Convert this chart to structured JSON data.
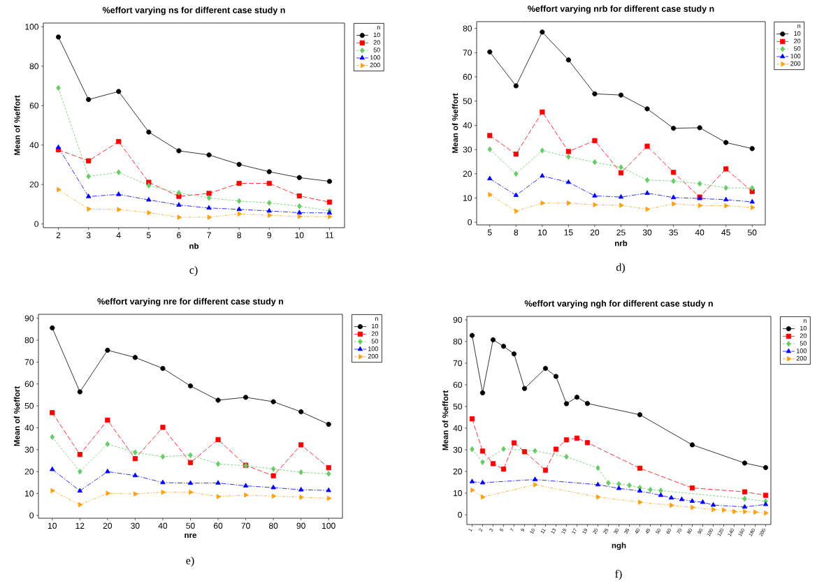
{
  "chart_data": [
    {
      "type": "line",
      "title": "%effort  varying ns for different case study n",
      "xlabel": "nb",
      "ylabel": "Mean of %effort",
      "legend_title": "n",
      "legend": "right",
      "annotations": [
        "c)"
      ],
      "categories": [
        "2",
        "3",
        "4",
        "5",
        "6",
        "7",
        "8",
        "9",
        "10",
        "11"
      ],
      "ylim": [
        -1.9,
        101.9
      ],
      "yticks": [
        0,
        20,
        40,
        60,
        80,
        100
      ],
      "series": [
        {
          "name": "10",
          "color": "#000000",
          "marker": "circle",
          "line_style": "solid",
          "values": [
            94.8,
            63.1,
            67.2,
            46.6,
            37.1,
            35.0,
            30.2,
            26.5,
            23.5,
            21.6
          ]
        },
        {
          "name": "20",
          "color": "#ff0000",
          "marker": "square",
          "line_style": "dashed",
          "values": [
            37.6,
            32.0,
            41.8,
            21.1,
            14.0,
            15.5,
            20.6,
            20.6,
            14.2,
            11.1
          ]
        },
        {
          "name": "50",
          "color": "#66cc66",
          "marker": "diamond",
          "line_style": "dashed",
          "values": [
            69.0,
            24.1,
            26.2,
            19.5,
            15.8,
            13.2,
            11.6,
            10.7,
            9.0,
            6.7
          ]
        },
        {
          "name": "100",
          "color": "#0000ff",
          "marker": "triangle",
          "line_style": "dashed",
          "values": [
            38.8,
            13.9,
            15.0,
            12.2,
            9.6,
            8.1,
            7.4,
            6.6,
            5.7,
            5.6
          ]
        },
        {
          "name": "200",
          "color": "#ffa010",
          "marker": "triangle",
          "line_style": "dashed",
          "values": [
            17.4,
            7.6,
            7.3,
            5.7,
            3.4,
            3.4,
            5.1,
            4.4,
            3.8,
            3.7
          ]
        }
      ]
    },
    {
      "type": "line",
      "title": "%effort  varying nrb for different case study n",
      "xlabel": "nrb",
      "ylabel": "Mean of %effort",
      "legend_title": "n",
      "legend": "right",
      "annotations": [
        "d)"
      ],
      "categories": [
        "5",
        "8",
        "10",
        "15",
        "20",
        "25",
        "30",
        "35",
        "40",
        "45",
        "50"
      ],
      "ylim": [
        -1.1,
        82.8
      ],
      "yticks": [
        0,
        10,
        20,
        30,
        40,
        50,
        60,
        70,
        80
      ],
      "series": [
        {
          "name": "10",
          "color": "#000000",
          "marker": "circle",
          "line_style": "solid",
          "values": [
            70.3,
            56.3,
            78.5,
            67.0,
            53.0,
            52.5,
            46.8,
            38.8,
            39.0,
            32.9,
            30.4
          ]
        },
        {
          "name": "20",
          "color": "#ff0000",
          "marker": "square",
          "line_style": "dashed",
          "values": [
            35.8,
            28.1,
            45.5,
            29.2,
            33.7,
            20.4,
            31.4,
            20.6,
            10.4,
            22.0,
            12.7
          ]
        },
        {
          "name": "50",
          "color": "#66cc66",
          "marker": "diamond",
          "line_style": "dashed",
          "values": [
            30.1,
            20.0,
            29.6,
            27.0,
            24.8,
            22.7,
            17.4,
            17.0,
            15.9,
            14.2,
            14.1
          ]
        },
        {
          "name": "100",
          "color": "#0000ff",
          "marker": "triangle",
          "line_style": "dashed",
          "values": [
            18.0,
            11.1,
            19.1,
            16.5,
            10.9,
            10.4,
            12.0,
            10.2,
            9.8,
            9.3,
            8.4
          ]
        },
        {
          "name": "200",
          "color": "#ffa010",
          "marker": "triangle",
          "line_style": "dashed",
          "values": [
            11.4,
            4.6,
            7.9,
            7.9,
            7.2,
            7.0,
            5.4,
            7.6,
            6.9,
            6.8,
            6.1
          ]
        }
      ]
    },
    {
      "type": "line",
      "title": "%effort varying nre for different case study n",
      "xlabel": "nre",
      "ylabel": "Mean of %effort",
      "legend_title": "n",
      "legend": "right",
      "annotations": [
        "e)"
      ],
      "categories": [
        "10",
        "12",
        "20",
        "30",
        "40",
        "50",
        "60",
        "70",
        "80",
        "90",
        "100"
      ],
      "ylim": [
        -1.3,
        91.8
      ],
      "yticks": [
        0,
        10,
        20,
        30,
        40,
        50,
        60,
        70,
        80,
        90
      ],
      "series": [
        {
          "name": "10",
          "color": "#000000",
          "marker": "circle",
          "line_style": "solid",
          "values": [
            85.6,
            56.4,
            75.4,
            72.1,
            67.1,
            59.1,
            52.6,
            53.9,
            51.9,
            47.3,
            41.6
          ]
        },
        {
          "name": "20",
          "color": "#ff0000",
          "marker": "square",
          "line_style": "dashed",
          "values": [
            46.9,
            27.8,
            43.5,
            25.9,
            40.2,
            24.1,
            34.6,
            22.9,
            18.1,
            32.2,
            21.8
          ]
        },
        {
          "name": "50",
          "color": "#66cc66",
          "marker": "diamond",
          "line_style": "dashed",
          "values": [
            35.8,
            20.0,
            32.6,
            28.8,
            26.8,
            27.5,
            23.5,
            22.7,
            21.2,
            19.7,
            19.0
          ]
        },
        {
          "name": "100",
          "color": "#0000ff",
          "marker": "triangle",
          "line_style": "dashed",
          "values": [
            21.0,
            11.2,
            20.0,
            18.2,
            15.0,
            14.7,
            14.8,
            13.5,
            12.7,
            11.7,
            11.4
          ]
        },
        {
          "name": "200",
          "color": "#ffa010",
          "marker": "triangle",
          "line_style": "dashed",
          "values": [
            11.3,
            4.9,
            10.1,
            9.8,
            10.6,
            10.6,
            8.6,
            9.3,
            8.8,
            8.3,
            7.8
          ]
        }
      ]
    },
    {
      "type": "line",
      "title": "%effort varying ngh for different case study n",
      "xlabel": "ngh",
      "ylabel": "Mean of %effort",
      "legend_title": "n",
      "legend": "right",
      "annotations": [
        "f)"
      ],
      "categories": [
        "1",
        "2",
        "3",
        "5",
        "7",
        "9",
        "10",
        "11",
        "13",
        "15",
        "17",
        "19",
        "20",
        "25",
        "30",
        "35",
        "40",
        "45",
        "50",
        "60",
        "70",
        "80",
        "90",
        "100",
        "120",
        "140",
        "160",
        "180",
        "200"
      ],
      "ylim": [
        -4.5,
        91.6
      ],
      "yticks": [
        0,
        10,
        20,
        30,
        40,
        50,
        60,
        70,
        80,
        90
      ],
      "series": [
        {
          "name": "10",
          "color": "#000000",
          "marker": "circle",
          "line_style": "solid",
          "values": [
            82.8,
            56.3,
            80.8,
            77.8,
            74.3,
            58.3,
            null,
            67.6,
            63.9,
            51.3,
            54.3,
            51.4,
            null,
            null,
            null,
            null,
            46.2,
            null,
            null,
            null,
            null,
            32.3,
            null,
            null,
            null,
            null,
            23.9,
            null,
            21.8
          ]
        },
        {
          "name": "20",
          "color": "#ff0000",
          "marker": "square",
          "line_style": "dashed",
          "values": [
            44.3,
            29.4,
            23.6,
            21.1,
            33.2,
            29.1,
            null,
            20.6,
            30.3,
            34.6,
            35.4,
            33.3,
            null,
            null,
            null,
            null,
            21.5,
            null,
            null,
            null,
            null,
            12.4,
            null,
            null,
            null,
            null,
            10.6,
            null,
            9.0
          ]
        },
        {
          "name": "50",
          "color": "#66cc66",
          "marker": "diamond",
          "line_style": "dashed",
          "values": [
            30.3,
            24.3,
            null,
            30.4,
            null,
            null,
            29.5,
            null,
            null,
            26.8,
            null,
            null,
            21.6,
            14.7,
            14.2,
            13.6,
            12.5,
            11.6,
            11.2,
            null,
            null,
            null,
            null,
            null,
            null,
            null,
            7.4,
            null,
            6.2
          ]
        },
        {
          "name": "100",
          "color": "#0000ff",
          "marker": "triangle",
          "line_style": "dashed",
          "values": [
            15.3,
            14.8,
            null,
            null,
            null,
            null,
            16.3,
            null,
            null,
            null,
            null,
            null,
            13.9,
            null,
            12.2,
            null,
            11.0,
            null,
            9.0,
            7.8,
            7.1,
            6.3,
            5.8,
            4.5,
            null,
            null,
            3.6,
            null,
            4.8
          ]
        },
        {
          "name": "200",
          "color": "#ffa010",
          "marker": "triangle",
          "line_style": "dashed",
          "values": [
            11.4,
            8.2,
            null,
            null,
            null,
            null,
            13.9,
            null,
            null,
            null,
            null,
            null,
            8.2,
            null,
            null,
            null,
            5.8,
            null,
            null,
            4.4,
            null,
            3.4,
            null,
            2.4,
            2.2,
            1.5,
            1.5,
            1.2,
            0.8
          ]
        }
      ]
    }
  ]
}
